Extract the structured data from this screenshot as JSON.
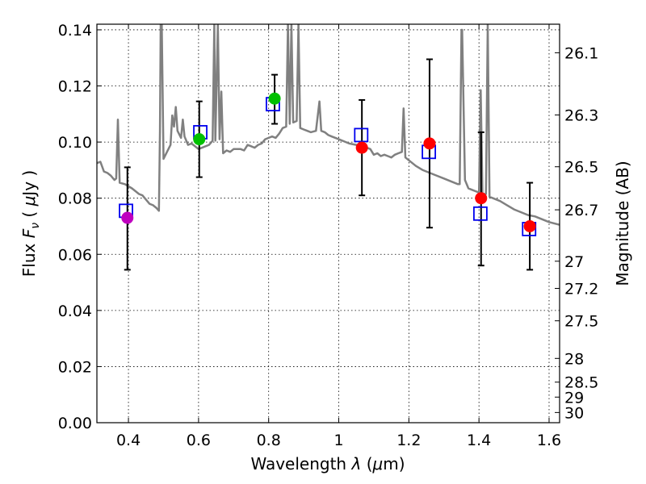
{
  "chart_data": {
    "type": "scatter",
    "xlabel": "Wavelength",
    "xlabel_symbol": "λ",
    "xlabel_unit_open": "(",
    "xlabel_unit_mu": "μ",
    "xlabel_unit_rest": "m)",
    "ylabel": "Flux",
    "ylabel_symbol": "F",
    "ylabel_symbol_sub": "ν",
    "ylabel_unit_open": "(",
    "ylabel_unit_mu": "μ",
    "ylabel_unit_rest": "Jy )",
    "ylabel_right": "Magnitude (AB)",
    "xlim": [
      0.31,
      1.63
    ],
    "ylim": [
      0.0,
      0.142
    ],
    "grid": true,
    "x_ticks": [
      0.4,
      0.6,
      0.8,
      1.0,
      1.2,
      1.4,
      1.6
    ],
    "x_tick_labels": [
      "0.4",
      "0.6",
      "0.8",
      "1",
      "1.2",
      "1.4",
      "1.6"
    ],
    "y_ticks": [
      0.0,
      0.02,
      0.04,
      0.06,
      0.08,
      0.1,
      0.12,
      0.14
    ],
    "y_tick_labels": [
      "0.00",
      "0.02",
      "0.04",
      "0.06",
      "0.08",
      "0.10",
      "0.12",
      "0.14"
    ],
    "mag_ticks": [
      {
        "mag": 26.1,
        "label": "26.1"
      },
      {
        "mag": 26.3,
        "label": "26.3"
      },
      {
        "mag": 26.5,
        "label": "26.5"
      },
      {
        "mag": 26.7,
        "label": "26.7"
      },
      {
        "mag": 27.0,
        "label": "27"
      },
      {
        "mag": 27.2,
        "label": "27.2"
      },
      {
        "mag": 27.5,
        "label": "27.5"
      },
      {
        "mag": 28.0,
        "label": "28"
      },
      {
        "mag": 28.5,
        "label": "28.5"
      },
      {
        "mag": 29.0,
        "label": "29"
      },
      {
        "mag": 30.0,
        "label": "30"
      }
    ],
    "photometry": [
      {
        "x": 0.397,
        "y": 0.073,
        "err_low": 0.0545,
        "err_high": 0.091,
        "color": "#bf00bf"
      },
      {
        "x": 0.602,
        "y": 0.101,
        "err_low": 0.0875,
        "err_high": 0.1145,
        "color": "#00c000"
      },
      {
        "x": 0.817,
        "y": 0.1155,
        "err_low": 0.1065,
        "err_high": 0.124,
        "color": "#00c000"
      },
      {
        "x": 1.066,
        "y": 0.098,
        "err_low": 0.081,
        "err_high": 0.115,
        "color": "#ff0000"
      },
      {
        "x": 1.259,
        "y": 0.0995,
        "err_low": 0.0695,
        "err_high": 0.1295,
        "color": "#ff0000"
      },
      {
        "x": 1.406,
        "y": 0.08,
        "err_low": 0.056,
        "err_high": 0.1035,
        "color": "#ff0000"
      },
      {
        "x": 1.545,
        "y": 0.07,
        "err_low": 0.0545,
        "err_high": 0.0855,
        "color": "#ff0000"
      }
    ],
    "model_bands": [
      {
        "x": 0.393,
        "y": 0.0755
      },
      {
        "x": 0.605,
        "y": 0.1035
      },
      {
        "x": 0.812,
        "y": 0.1135
      },
      {
        "x": 1.064,
        "y": 0.1025
      },
      {
        "x": 1.257,
        "y": 0.0965
      },
      {
        "x": 1.404,
        "y": 0.0745
      },
      {
        "x": 1.543,
        "y": 0.069
      }
    ],
    "model_spectrum": [
      [
        0.31,
        0.0925
      ],
      [
        0.32,
        0.093
      ],
      [
        0.33,
        0.0895
      ],
      [
        0.34,
        0.089
      ],
      [
        0.35,
        0.088
      ],
      [
        0.36,
        0.0865
      ],
      [
        0.365,
        0.087
      ],
      [
        0.37,
        0.108
      ],
      [
        0.375,
        0.0855
      ],
      [
        0.39,
        0.085
      ],
      [
        0.41,
        0.0835
      ],
      [
        0.42,
        0.0825
      ],
      [
        0.43,
        0.0815
      ],
      [
        0.44,
        0.081
      ],
      [
        0.45,
        0.0795
      ],
      [
        0.46,
        0.078
      ],
      [
        0.47,
        0.0775
      ],
      [
        0.48,
        0.0765
      ],
      [
        0.487,
        0.0755
      ],
      [
        0.49,
        0.104
      ],
      [
        0.492,
        0.142
      ],
      [
        0.495,
        0.142
      ],
      [
        0.5,
        0.094
      ],
      [
        0.51,
        0.0965
      ],
      [
        0.52,
        0.099
      ],
      [
        0.525,
        0.1095
      ],
      [
        0.53,
        0.1055
      ],
      [
        0.535,
        0.1125
      ],
      [
        0.54,
        0.104
      ],
      [
        0.55,
        0.1015
      ],
      [
        0.555,
        0.108
      ],
      [
        0.56,
        0.102
      ],
      [
        0.57,
        0.099
      ],
      [
        0.58,
        0.0995
      ],
      [
        0.59,
        0.0985
      ],
      [
        0.6,
        0.0975
      ],
      [
        0.62,
        0.0985
      ],
      [
        0.63,
        0.099
      ],
      [
        0.64,
        0.1005
      ],
      [
        0.645,
        0.142
      ],
      [
        0.648,
        0.1005
      ],
      [
        0.655,
        0.142
      ],
      [
        0.66,
        0.101
      ],
      [
        0.665,
        0.118
      ],
      [
        0.67,
        0.096
      ],
      [
        0.68,
        0.097
      ],
      [
        0.69,
        0.0965
      ],
      [
        0.7,
        0.0975
      ],
      [
        0.72,
        0.0975
      ],
      [
        0.73,
        0.097
      ],
      [
        0.74,
        0.099
      ],
      [
        0.75,
        0.0985
      ],
      [
        0.76,
        0.098
      ],
      [
        0.77,
        0.099
      ],
      [
        0.78,
        0.0995
      ],
      [
        0.79,
        0.101
      ],
      [
        0.8,
        0.1015
      ],
      [
        0.81,
        0.102
      ],
      [
        0.82,
        0.1015
      ],
      [
        0.83,
        0.103
      ],
      [
        0.84,
        0.105
      ],
      [
        0.85,
        0.1055
      ],
      [
        0.855,
        0.142
      ],
      [
        0.86,
        0.1065
      ],
      [
        0.865,
        0.142
      ],
      [
        0.87,
        0.107
      ],
      [
        0.88,
        0.1075
      ],
      [
        0.885,
        0.142
      ],
      [
        0.89,
        0.105
      ],
      [
        0.9,
        0.1045
      ],
      [
        0.91,
        0.104
      ],
      [
        0.92,
        0.1035
      ],
      [
        0.935,
        0.104
      ],
      [
        0.945,
        0.1145
      ],
      [
        0.95,
        0.104
      ],
      [
        0.96,
        0.1035
      ],
      [
        0.97,
        0.1025
      ],
      [
        0.98,
        0.102
      ],
      [
        1.0,
        0.101
      ],
      [
        1.02,
        0.1
      ],
      [
        1.03,
        0.0995
      ],
      [
        1.05,
        0.099
      ],
      [
        1.07,
        0.0985
      ],
      [
        1.09,
        0.0975
      ],
      [
        1.1,
        0.0955
      ],
      [
        1.11,
        0.096
      ],
      [
        1.12,
        0.095
      ],
      [
        1.13,
        0.0955
      ],
      [
        1.14,
        0.095
      ],
      [
        1.15,
        0.0945
      ],
      [
        1.16,
        0.0955
      ],
      [
        1.17,
        0.096
      ],
      [
        1.18,
        0.0965
      ],
      [
        1.185,
        0.112
      ],
      [
        1.19,
        0.0945
      ],
      [
        1.2,
        0.0935
      ],
      [
        1.22,
        0.0915
      ],
      [
        1.24,
        0.09
      ],
      [
        1.26,
        0.089
      ],
      [
        1.28,
        0.088
      ],
      [
        1.3,
        0.087
      ],
      [
        1.32,
        0.086
      ],
      [
        1.34,
        0.085
      ],
      [
        1.345,
        0.085
      ],
      [
        1.35,
        0.14
      ],
      [
        1.352,
        0.14
      ],
      [
        1.36,
        0.0865
      ],
      [
        1.37,
        0.0835
      ],
      [
        1.38,
        0.083
      ],
      [
        1.39,
        0.0825
      ],
      [
        1.4,
        0.082
      ],
      [
        1.405,
        0.1185
      ],
      [
        1.41,
        0.0815
      ],
      [
        1.42,
        0.0815
      ],
      [
        1.425,
        0.142
      ],
      [
        1.43,
        0.0805
      ],
      [
        1.44,
        0.08
      ],
      [
        1.46,
        0.079
      ],
      [
        1.48,
        0.0775
      ],
      [
        1.5,
        0.076
      ],
      [
        1.52,
        0.075
      ],
      [
        1.54,
        0.074
      ],
      [
        1.56,
        0.0735
      ],
      [
        1.58,
        0.0725
      ],
      [
        1.6,
        0.0715
      ],
      [
        1.63,
        0.0705
      ]
    ]
  }
}
